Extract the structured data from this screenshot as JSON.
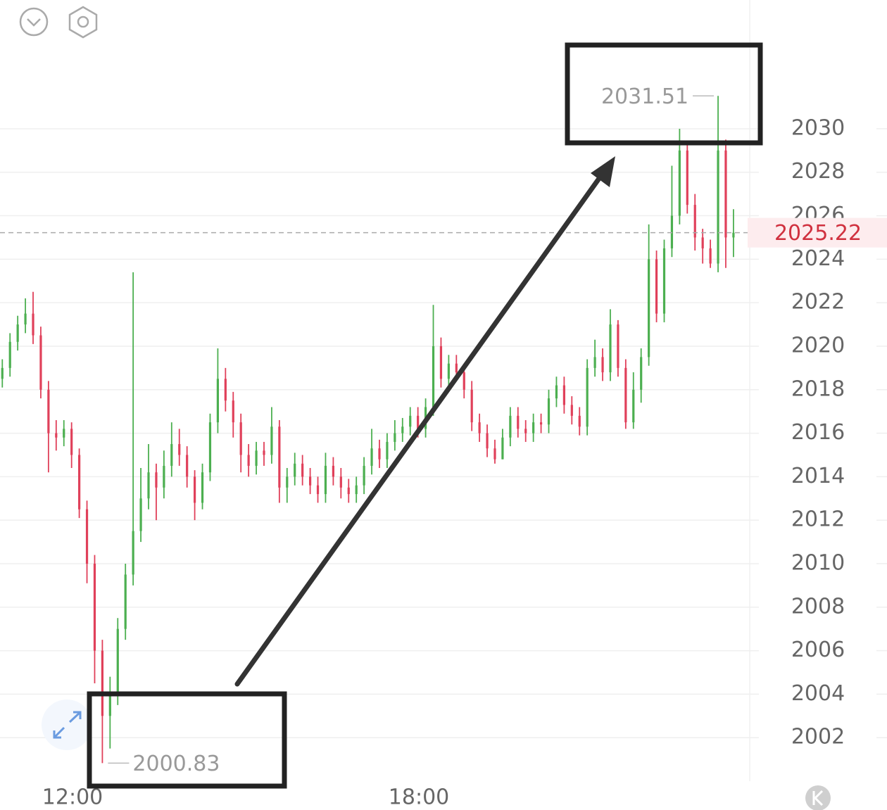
{
  "chart_data": {
    "type": "candlestick",
    "x": [
      647,
      655,
      663,
      671,
      679,
      687,
      695,
      703,
      711,
      719,
      727,
      735,
      743,
      751,
      759,
      767,
      775,
      783,
      791,
      799,
      807,
      815,
      823,
      831,
      839,
      847,
      855,
      863,
      871,
      879,
      887,
      895,
      903,
      911,
      919,
      927,
      935,
      943,
      951,
      959,
      967,
      975,
      983,
      991,
      999,
      1007,
      1015,
      1023,
      1031,
      1039,
      1047,
      1055,
      1063,
      1071,
      1079,
      1087,
      1095,
      1103,
      1111,
      1119,
      1127,
      1135,
      1143,
      1151,
      1159,
      1167,
      1175,
      1183,
      1191,
      1199,
      1207,
      1215,
      1223,
      1231,
      1239,
      1247,
      1255,
      1263,
      1271,
      1279,
      1287,
      1295,
      1303,
      1311,
      1319,
      1327,
      1335,
      1343,
      1351,
      1359,
      1367,
      1375,
      1383,
      1391,
      1399,
      1407
    ],
    "open": [
      2018.5,
      2019.0,
      2020.2,
      2021.0,
      2021.5,
      2020.5,
      2018.0,
      2016.0,
      2015.8,
      2016.2,
      2015.0,
      2012.5,
      2010.0,
      2006.0,
      2003.0,
      2004.0,
      2007.0,
      2009.5,
      2011.5,
      2013.0,
      2014.2,
      2013.5,
      2014.5,
      2015.5,
      2015.0,
      2014.0,
      2012.8,
      2014.2,
      2016.5,
      2018.5,
      2017.5,
      2016.5,
      2015.0,
      2014.5,
      2015.2,
      2015.0,
      2016.3,
      2013.5,
      2014.0,
      2014.6,
      2014.0,
      2013.6,
      2013.2,
      2014.5,
      2014.0,
      2013.5,
      2013.2,
      2013.6,
      2014.5,
      2015.3,
      2014.8,
      2015.6,
      2016.0,
      2016.3,
      2016.8,
      2016.2,
      2017.2,
      2020.0,
      2018.5,
      2019.2,
      2018.8,
      2018.0,
      2016.5,
      2016.0,
      2015.3,
      2014.8,
      2015.8,
      2016.8,
      2016.2,
      2016.0,
      2016.5,
      2016.4,
      2017.6,
      2018.2,
      2017.3,
      2016.8,
      2016.3,
      2019.0,
      2019.5,
      2018.8,
      2021.0,
      2019.0,
      2016.5,
      2018.0,
      2019.5,
      2024.0,
      2021.5,
      2024.5,
      2026.0,
      2029.0,
      2026.5,
      2025.0,
      2024.5,
      2023.8,
      2029.0,
      2025.0
    ],
    "high": [
      2019.4,
      2020.6,
      2021.4,
      2022.2,
      2022.5,
      2020.9,
      2018.4,
      2016.6,
      2016.6,
      2016.5,
      2015.3,
      2012.9,
      2010.4,
      2006.5,
      2004.8,
      2007.5,
      2010.0,
      2023.4,
      2014.4,
      2015.5,
      2014.6,
      2015.2,
      2016.5,
      2016.2,
      2015.4,
      2014.3,
      2014.6,
      2016.9,
      2019.9,
      2019.0,
      2017.9,
      2016.9,
      2015.5,
      2015.6,
      2015.6,
      2017.2,
      2016.6,
      2014.4,
      2015.1,
      2015.0,
      2014.4,
      2014.0,
      2015.1,
      2014.9,
      2014.4,
      2013.9,
      2014.0,
      2014.9,
      2016.2,
      2015.7,
      2016.0,
      2016.6,
      2016.7,
      2017.2,
      2017.2,
      2017.6,
      2021.9,
      2020.4,
      2019.6,
      2019.6,
      2019.2,
      2018.4,
      2016.9,
      2016.4,
      2015.7,
      2016.2,
      2017.2,
      2017.2,
      2016.6,
      2016.9,
      2016.9,
      2018.0,
      2018.6,
      2018.6,
      2017.7,
      2017.2,
      2019.4,
      2020.3,
      2019.9,
      2021.7,
      2021.2,
      2019.4,
      2018.8,
      2019.9,
      2025.6,
      2024.4,
      2024.9,
      2028.3,
      2030.0,
      2029.4,
      2027.0,
      2025.4,
      2024.9,
      2031.51,
      2029.5,
      2026.3
    ],
    "low": [
      2018.1,
      2018.6,
      2019.8,
      2020.6,
      2020.1,
      2017.6,
      2014.2,
      2015.2,
      2015.4,
      2014.4,
      2012.1,
      2009.1,
      2004.5,
      2000.83,
      2001.5,
      2003.5,
      2006.5,
      2009.0,
      2011.0,
      2012.5,
      2012.0,
      2013.0,
      2014.0,
      2014.5,
      2013.5,
      2012.0,
      2012.5,
      2013.8,
      2016.0,
      2017.0,
      2015.8,
      2014.2,
      2014.0,
      2014.1,
      2014.5,
      2014.6,
      2012.8,
      2012.8,
      2013.6,
      2013.6,
      2013.2,
      2012.8,
      2012.8,
      2013.6,
      2013.0,
      2012.8,
      2012.8,
      2013.2,
      2014.1,
      2014.4,
      2014.4,
      2015.2,
      2015.6,
      2015.9,
      2015.8,
      2015.8,
      2016.8,
      2018.1,
      2018.1,
      2018.4,
      2017.6,
      2016.1,
      2015.6,
      2014.9,
      2014.6,
      2014.8,
      2015.4,
      2015.8,
      2015.6,
      2015.6,
      2016.0,
      2016.0,
      2017.2,
      2016.9,
      2016.4,
      2015.9,
      2015.9,
      2018.6,
      2018.4,
      2018.4,
      2018.6,
      2016.2,
      2016.2,
      2017.4,
      2019.1,
      2021.1,
      2021.1,
      2024.1,
      2025.6,
      2026.1,
      2024.4,
      2023.8,
      2023.6,
      2023.4,
      2023.6,
      2024.1
    ],
    "close": [
      2019.0,
      2020.2,
      2021.0,
      2021.5,
      2020.5,
      2018.0,
      2016.0,
      2015.8,
      2016.2,
      2015.0,
      2012.5,
      2010.0,
      2006.0,
      2003.0,
      2004.0,
      2007.0,
      2009.5,
      2011.5,
      2013.0,
      2014.2,
      2013.5,
      2014.5,
      2015.5,
      2015.0,
      2014.0,
      2012.8,
      2014.2,
      2016.5,
      2018.5,
      2017.5,
      2016.5,
      2015.0,
      2014.5,
      2015.2,
      2015.0,
      2016.3,
      2013.5,
      2014.0,
      2014.6,
      2014.0,
      2013.6,
      2013.2,
      2014.5,
      2014.0,
      2013.5,
      2013.2,
      2013.6,
      2014.5,
      2015.3,
      2014.8,
      2015.6,
      2016.0,
      2016.3,
      2016.8,
      2016.2,
      2017.2,
      2020.0,
      2018.5,
      2019.2,
      2018.8,
      2018.0,
      2016.5,
      2016.0,
      2015.3,
      2014.8,
      2015.8,
      2016.8,
      2016.2,
      2016.0,
      2016.5,
      2016.4,
      2017.6,
      2018.2,
      2017.3,
      2016.8,
      2016.3,
      2019.0,
      2019.5,
      2018.8,
      2021.0,
      2019.0,
      2016.5,
      2018.0,
      2019.5,
      2024.0,
      2021.5,
      2024.5,
      2026.0,
      2029.0,
      2026.5,
      2025.0,
      2024.5,
      2023.8,
      2029.0,
      2025.0,
      2025.22
    ],
    "up_color": "#4caf50",
    "down_color": "#e0405a",
    "xlim": [
      644.6,
      1423.9
    ],
    "xticks": [
      {
        "value": 720,
        "label": "12:00"
      },
      {
        "value": 1080,
        "label": "18:00"
      }
    ],
    "ylim": [
      2000.0,
      2035.92
    ],
    "yticks": [
      2002,
      2004,
      2006,
      2008,
      2010,
      2012,
      2014,
      2016,
      2018,
      2020,
      2022,
      2024,
      2026,
      2028,
      2030
    ],
    "grid": true
  }
}
